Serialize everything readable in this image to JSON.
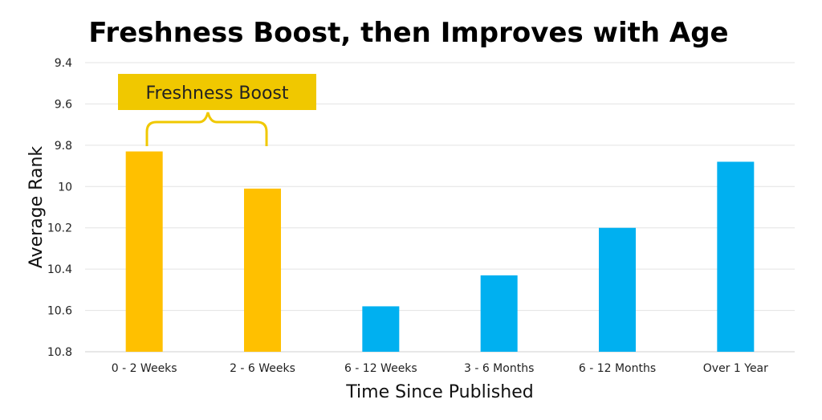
{
  "chart_data": {
    "type": "bar",
    "title": "Freshness Boost, then Improves with Age",
    "xlabel": "Time Since Published",
    "ylabel": "Average Rank",
    "categories": [
      "0 - 2 Weeks",
      "2 - 6 Weeks",
      "6 - 12 Weeks",
      "3 - 6 Months",
      "6 - 12 Months",
      "Over 1 Year"
    ],
    "values": [
      9.83,
      10.01,
      10.58,
      10.43,
      10.2,
      9.88
    ],
    "bar_colors": [
      "#FFC000",
      "#FFC000",
      "#00B0F0",
      "#00B0F0",
      "#00B0F0",
      "#00B0F0"
    ],
    "y_inverted": true,
    "ylim": [
      9.4,
      10.8
    ],
    "yticks": [
      "9.4",
      "9.6",
      "9.8",
      "10",
      "10.2",
      "10.4",
      "10.6",
      "10.8"
    ],
    "grid": true,
    "annotation": {
      "text": "Freshness Boost",
      "spans_categories": [
        "0 - 2 Weeks",
        "2 - 6 Weeks"
      ],
      "color": "#F0C800"
    }
  }
}
